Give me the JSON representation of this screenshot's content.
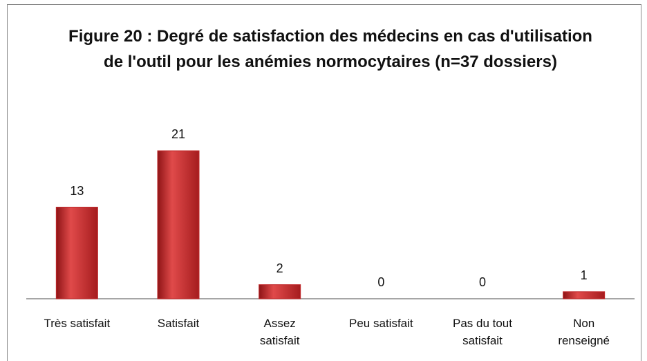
{
  "chart_data": {
    "type": "bar",
    "title": "Figure 20 : Degré de satisfaction des médecins en cas d'utilisation de l'outil pour les anémies normocytaires (n=37 dossiers)",
    "categories": [
      "Très satisfait",
      "Satisfait",
      "Assez satisfait",
      "Peu satisfait",
      "Pas du tout satisfait",
      "Non renseigné"
    ],
    "values": [
      13,
      21,
      2,
      0,
      0,
      1
    ],
    "color": "#c0282a"
  }
}
